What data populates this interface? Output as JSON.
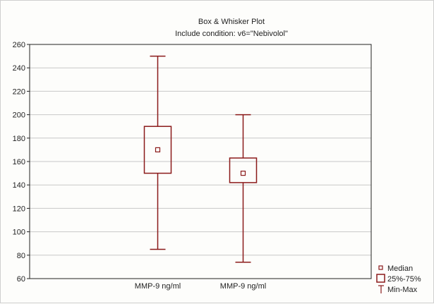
{
  "chart_data": {
    "type": "box",
    "title": "Box & Whisker Plot",
    "subtitle": "Include condition: v6=\"Nebivolol\"",
    "xlabel": "",
    "ylabel": "",
    "ylim": [
      60,
      260
    ],
    "yticks": [
      60,
      80,
      100,
      120,
      140,
      160,
      180,
      200,
      220,
      240,
      260
    ],
    "grid": true,
    "legend_position": "bottom-right",
    "categories": [
      "MMP-9 ng/ml",
      "MMP-9 ng/ml"
    ],
    "series": [
      {
        "category": "MMP-9 ng/ml",
        "min": 85,
        "q1": 150,
        "median": 170,
        "q3": 190,
        "max": 250
      },
      {
        "category": "MMP-9 ng/ml",
        "min": 74,
        "q1": 142,
        "median": 150,
        "q3": 163,
        "max": 200
      }
    ],
    "legend": [
      {
        "label": "Median",
        "symbol": "small-square"
      },
      {
        "label": "25%-75%",
        "symbol": "box"
      },
      {
        "label": "Min-Max",
        "symbol": "whisker"
      }
    ],
    "colors": {
      "series": "#8b1a1a",
      "grid": "#c8c8c8",
      "axis": "#222222"
    }
  }
}
